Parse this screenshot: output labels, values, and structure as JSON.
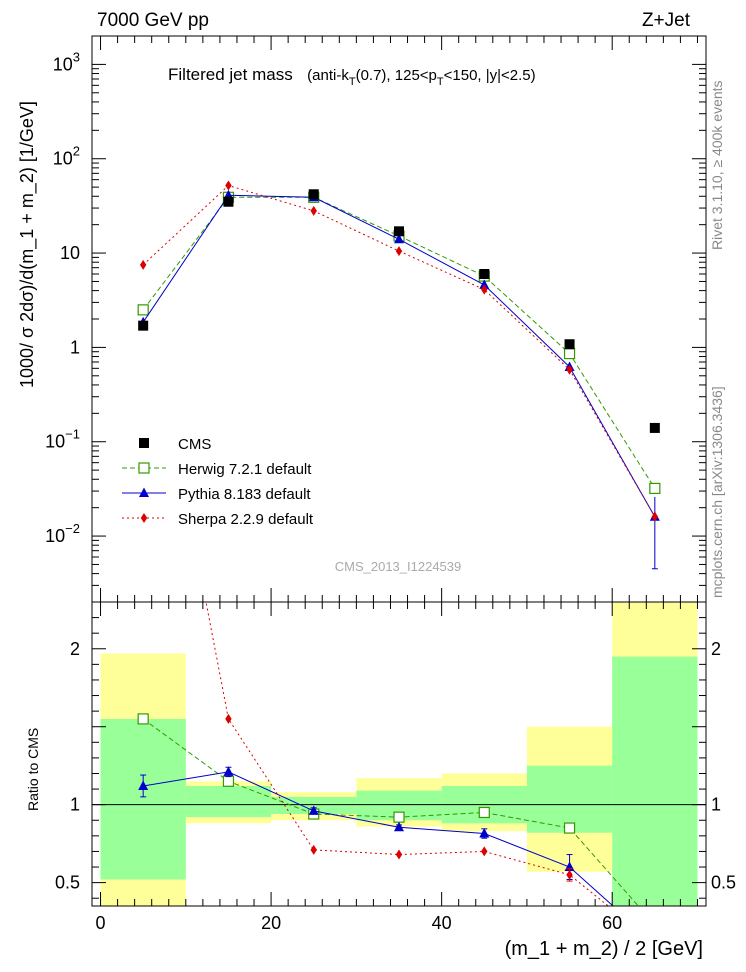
{
  "header": {
    "left": "7000 GeV pp",
    "right": "Z+Jet"
  },
  "plot_title": {
    "main": "Filtered jet mass",
    "sub_pre": "(anti-k",
    "sub_T1": "T",
    "sub_mid": "(0.7), 125<p",
    "sub_T2": "T",
    "sub_post": "<150, |y|<2.5)"
  },
  "watermark": "CMS_2013_I1224539",
  "side_labels": {
    "rivet": "Rivet 3.1.10, ≥ 400k events",
    "mcplots": "mcplots.cern.ch [arXiv:1306.3436]"
  },
  "chart_data": {
    "type": "scatter",
    "xlabel": "(m_1 + m_2) / 2 [GeV]",
    "ylabel": "1000/ σ 2dσ)/d(m_1 + m_2) [1/GeV]",
    "ratio_ylabel": "Ratio to CMS",
    "xlim": [
      -1,
      71
    ],
    "ylim_log": [
      0.002,
      2000
    ],
    "ratio_ylim": [
      0.35,
      2.3
    ],
    "main_y_scale": "log",
    "x_ticks": [
      0,
      20,
      40,
      60
    ],
    "main_y_ticks": [
      {
        "value": 1000,
        "base": "10",
        "exp": "3"
      },
      {
        "value": 100,
        "base": "10",
        "exp": "2"
      },
      {
        "value": 10,
        "base": "10",
        "exp": ""
      },
      {
        "value": 1,
        "base": "1",
        "exp": ""
      },
      {
        "value": 0.1,
        "base": "10",
        "exp": "−1"
      },
      {
        "value": 0.01,
        "base": "10",
        "exp": "−2"
      }
    ],
    "ratio_y_ticks": [
      0.5,
      1,
      2
    ],
    "bin_edges": [
      0,
      10,
      20,
      30,
      40,
      50,
      60,
      70
    ],
    "bin_centers": [
      5,
      15,
      25,
      35,
      45,
      55,
      65
    ],
    "data": {
      "name": "CMS",
      "color": "#000000",
      "values": [
        1.7,
        35,
        42,
        17,
        6.0,
        1.08,
        0.14
      ],
      "band_inner": [
        [
          0.52,
          1.55
        ],
        [
          0.92,
          1.12
        ],
        [
          0.94,
          1.05
        ],
        [
          0.9,
          1.09
        ],
        [
          0.88,
          1.12
        ],
        [
          0.82,
          1.25
        ],
        [
          0.2,
          1.95
        ]
      ],
      "band_outer": [
        [
          0.2,
          1.97
        ],
        [
          0.88,
          1.15
        ],
        [
          0.9,
          1.08
        ],
        [
          0.86,
          1.17
        ],
        [
          0.83,
          1.2
        ],
        [
          0.57,
          1.5
        ],
        [
          0.2,
          2.5
        ]
      ]
    },
    "series": [
      {
        "name": "Herwig 7.2.1 default",
        "color": "#339900",
        "marker": "open-square",
        "dash": "5,3",
        "values": [
          2.5,
          39,
          39,
          15.2,
          5.7,
          0.86,
          0.032
        ],
        "ratio": [
          1.55,
          1.15,
          0.94,
          0.92,
          0.95,
          0.85,
          0.23
        ]
      },
      {
        "name": "Pythia 8.183 default",
        "color": "#0000cc",
        "marker": "triangle",
        "dash": "",
        "values": [
          1.85,
          41,
          39,
          14,
          4.6,
          0.62,
          0.016
        ],
        "ratio": [
          1.12,
          1.21,
          0.96,
          0.855,
          0.815,
          0.6,
          0.11
        ],
        "ratio_err": [
          0.07,
          0.03,
          0.02,
          0.015,
          0.03,
          0.08,
          0.08
        ],
        "main_err_last": [
          0.0045,
          0.026
        ]
      },
      {
        "name": "Sherpa 2.2.9 default",
        "color": "#dd0000",
        "marker": "diamond",
        "dash": "2,3",
        "values": [
          7.5,
          52,
          28,
          10.5,
          4.1,
          0.58,
          0.016
        ],
        "ratio": [
          4.4,
          1.55,
          0.71,
          0.68,
          0.7,
          0.55,
          0.11
        ],
        "ratio_err": [
          0,
          0,
          0,
          0,
          0,
          0.04,
          0
        ]
      }
    ]
  }
}
